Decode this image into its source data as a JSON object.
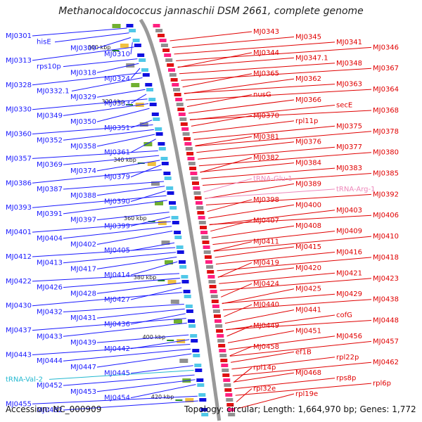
{
  "title": "Methanocaldococcus jannaschii DSM 2661, complete genome",
  "footer": {
    "accession": "Accession: NC_000909",
    "summary": "Topology: circular; Length: 1,664,970 bp; Genes: 1,772"
  },
  "colors": {
    "left_label": "#1a1aff",
    "right_label": "#e00000",
    "trna_left": "#22b8d0",
    "trna_right": "#ee88bb",
    "backbone": "#999999",
    "tick": "#228822"
  },
  "kbp_ticks": [
    "300 kbp",
    "320 kbp",
    "340 kbp",
    "360 kbp",
    "380 kbp",
    "400 kbp",
    "420 kbp"
  ],
  "left_labels": [
    "MJ0301",
    "hisE",
    "MJ0309",
    "MJ0310",
    "MJ0313",
    "rps10p",
    "MJ0318",
    "MJ0324",
    "MJ0328",
    "MJ0332.1",
    "MJ0329",
    "MJ0333",
    "MJ0330",
    "MJ0349",
    "MJ0350",
    "MJ0351",
    "MJ0360",
    "MJ0352",
    "MJ0358",
    "MJ0361",
    "MJ0357",
    "MJ0369",
    "MJ0374",
    "MJ0379",
    "MJ0386",
    "MJ0387",
    "MJ0388",
    "MJ0390",
    "MJ0393",
    "MJ0391",
    "MJ0397",
    "MJ0399",
    "MJ0401",
    "MJ0404",
    "MJ0402",
    "MJ0405",
    "MJ0412",
    "MJ0413",
    "MJ0417",
    "MJ0414",
    "MJ0422",
    "MJ0426",
    "MJ0428",
    "MJ0427",
    "MJ0430",
    "MJ0432",
    "MJ0431",
    "MJ0436",
    "MJ0437",
    "MJ0433",
    "MJ0439",
    "MJ0442",
    "MJ0443",
    "MJ0444",
    "MJ0447",
    "MJ0445",
    "tRNA-Val-2",
    "MJ0452",
    "MJ0453",
    "MJ0454",
    "MJ0455",
    "MJ0482"
  ],
  "right_labels": [
    "MJ0343",
    "MJ0345",
    "MJ0341",
    "MJ0346",
    "MJ0344",
    "MJ0347.1",
    "MJ0348",
    "MJ0367",
    "MJ0365",
    "MJ0362",
    "MJ0363",
    "MJ0364",
    "nusG",
    "MJ0366",
    "secE",
    "MJ0368",
    "MJ0370",
    "rpl11p",
    "MJ0375",
    "MJ0378",
    "MJ0381",
    "MJ0376",
    "MJ0377",
    "MJ0380",
    "MJ0382",
    "MJ0384",
    "MJ0383",
    "MJ0385",
    "tRNA-Glu-1",
    "MJ0389",
    "tRNA-Arg-1",
    "MJ0392",
    "MJ0398",
    "MJ0400",
    "MJ0403",
    "MJ0406",
    "MJ0407",
    "MJ0408",
    "MJ0409",
    "MJ0410",
    "MJ0411",
    "MJ0415",
    "MJ0416",
    "MJ0418",
    "MJ0419",
    "MJ0420",
    "MJ0421",
    "MJ0423",
    "MJ0424",
    "MJ0425",
    "MJ0429",
    "MJ0438",
    "MJ0440",
    "MJ0441",
    "cofG",
    "MJ0448",
    "MJ0449",
    "MJ0451",
    "MJ0456",
    "MJ0457",
    "MJ0458",
    "ef1B",
    "rpl22p",
    "MJ0462",
    "rpl14p",
    "MJ0468",
    "rps8p",
    "rpl6p",
    "rpl32e",
    "rpl19e"
  ]
}
